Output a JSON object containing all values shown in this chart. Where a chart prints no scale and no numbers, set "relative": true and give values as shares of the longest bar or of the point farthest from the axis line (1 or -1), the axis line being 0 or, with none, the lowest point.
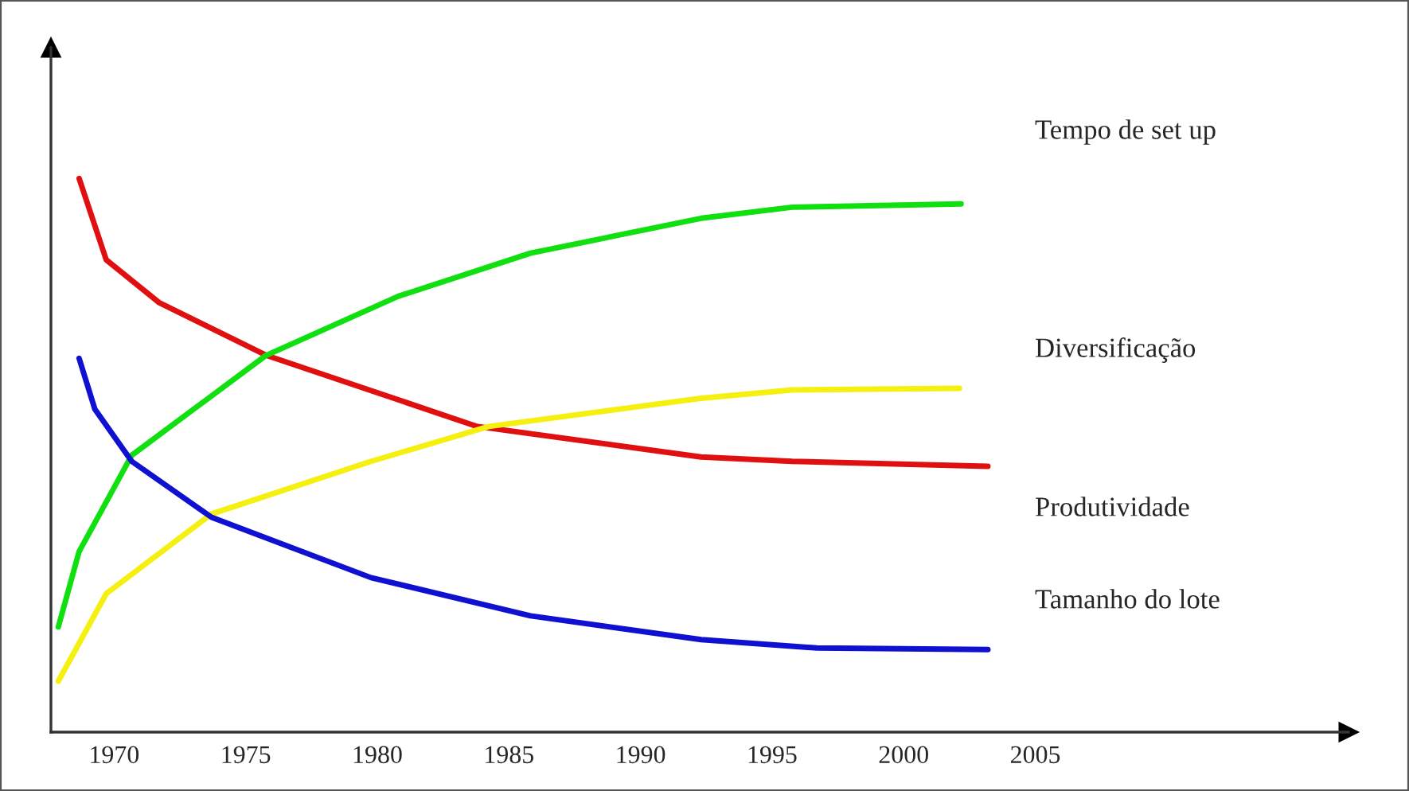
{
  "chart_data": {
    "type": "line",
    "relative": true,
    "xlim": [
      1967.6,
      2016.9
    ],
    "xticks": [
      1970,
      1975,
      1980,
      1985,
      1990,
      1995,
      2000,
      2005
    ],
    "grid": false,
    "legend": false,
    "marker": "none",
    "line_style": "solid",
    "annotations": [
      "Tempo de set up",
      "Diversificação",
      "Produtividade",
      "Tamanho do lote"
    ],
    "series": [
      {
        "color": "#e01010",
        "x": [
          1968.67,
          1969.7,
          1971.7,
          1975.76,
          1983.8,
          1992.3,
          1995.76,
          2003.2
        ],
        "values": [
          1.0,
          0.853,
          0.776,
          0.681,
          0.552,
          0.497,
          0.489,
          0.48
        ]
      },
      {
        "color": "#10e010",
        "x": [
          1967.88,
          1968.67,
          1970.67,
          1975.76,
          1980.79,
          1985.82,
          1992.3,
          1995.76,
          2002.18
        ],
        "values": [
          0.19,
          0.326,
          0.5,
          0.68,
          0.787,
          0.865,
          0.928,
          0.948,
          0.954
        ]
      },
      {
        "color": "#f5f010",
        "x": [
          1967.88,
          1969.7,
          1973.7,
          1979.76,
          1984.24,
          1992.3,
          1995.76,
          2002.12
        ],
        "values": [
          0.092,
          0.25,
          0.394,
          0.489,
          0.552,
          0.603,
          0.618,
          0.621
        ]
      },
      {
        "color": "#1010d0",
        "x": [
          1968.67,
          1969.27,
          1970.67,
          1973.7,
          1979.76,
          1985.82,
          1992.3,
          1996.7,
          2003.2
        ],
        "values": [
          0.675,
          0.583,
          0.489,
          0.388,
          0.279,
          0.21,
          0.167,
          0.152,
          0.149
        ]
      }
    ]
  }
}
